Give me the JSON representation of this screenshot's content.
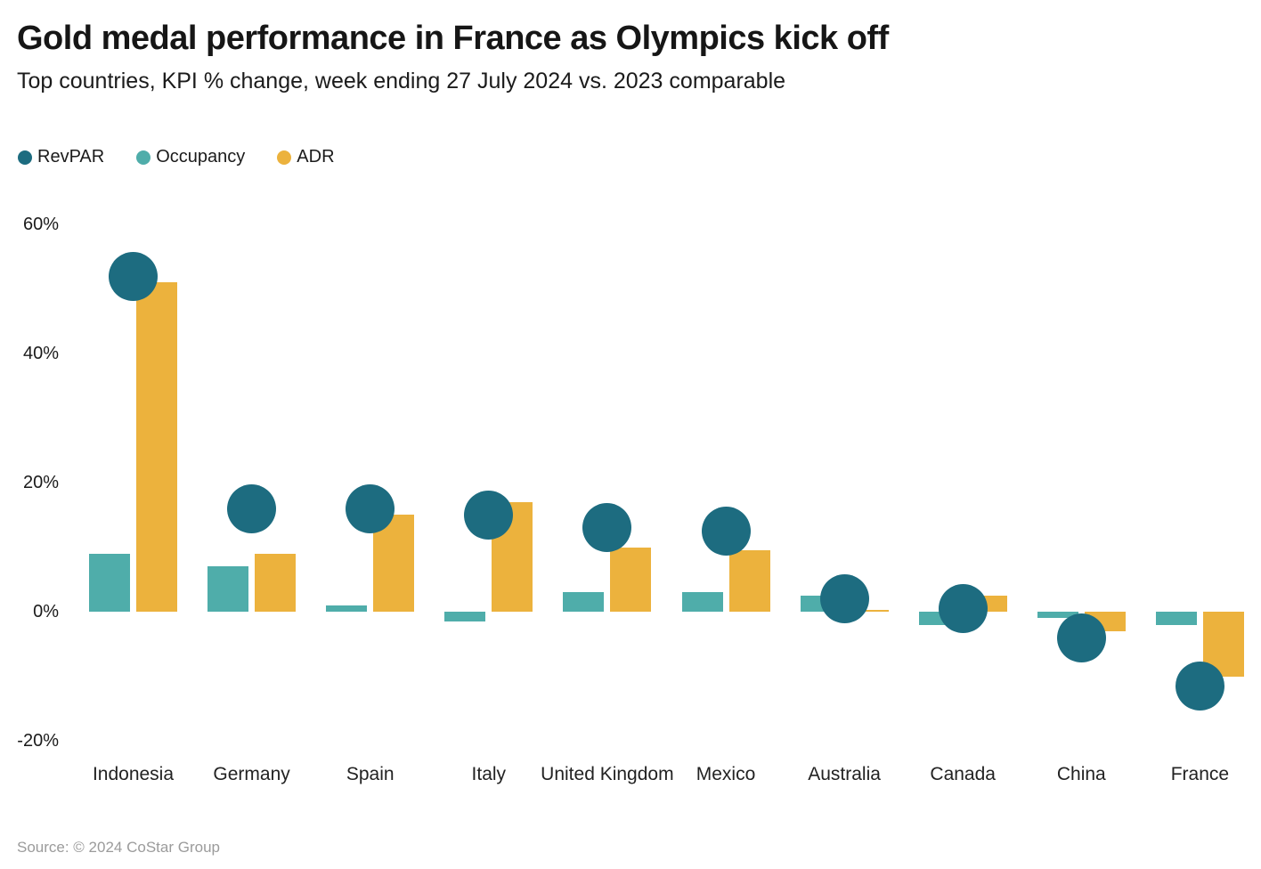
{
  "header": {
    "title": "Gold medal performance in France as Olympics kick off",
    "subtitle": "Top countries, KPI % change, week ending 27 July 2024 vs. 2023 comparable"
  },
  "legend": {
    "items": [
      {
        "label": "RevPAR",
        "color": "#1d6c80"
      },
      {
        "label": "Occupancy",
        "color": "#4fadaa"
      },
      {
        "label": "ADR",
        "color": "#ecb23d"
      }
    ]
  },
  "source": "Source: © 2024 CoStar Group",
  "chart_data": {
    "type": "bar",
    "subtype": "grouped bars (Occupancy, ADR) with RevPAR shown as circle markers on top",
    "title": "Gold medal performance in France as Olympics kick off",
    "subtitle": "Top countries, KPI % change, week ending 27 July 2024 vs. 2023 comparable",
    "categories": [
      "Indonesia",
      "Germany",
      "Spain",
      "Italy",
      "United Kingdom",
      "Mexico",
      "Australia",
      "Canada",
      "China",
      "France"
    ],
    "series": [
      {
        "name": "RevPAR",
        "render": "circle",
        "color": "#1d6c80",
        "values": [
          52,
          16,
          16,
          15,
          13,
          12.5,
          2,
          0.5,
          -4,
          -11.5
        ]
      },
      {
        "name": "Occupancy",
        "render": "bar",
        "color": "#4fadaa",
        "values": [
          9,
          7,
          1,
          -1.5,
          3,
          3,
          2.5,
          -2,
          -1,
          -2
        ]
      },
      {
        "name": "ADR",
        "render": "bar",
        "color": "#ecb23d",
        "values": [
          51,
          9,
          15,
          17,
          10,
          9.5,
          0.3,
          2.5,
          -3,
          -10
        ]
      }
    ],
    "xlabel": "",
    "ylabel": "KPI % change",
    "yticks": [
      60,
      40,
      20,
      0,
      -20
    ],
    "ytick_labels": [
      "60%",
      "40%",
      "20%",
      "0%",
      "-20%"
    ],
    "ylim": [
      -25,
      63
    ],
    "grid": false,
    "legend_position": "top-left",
    "source": "Source: © 2024 CoStar Group"
  }
}
